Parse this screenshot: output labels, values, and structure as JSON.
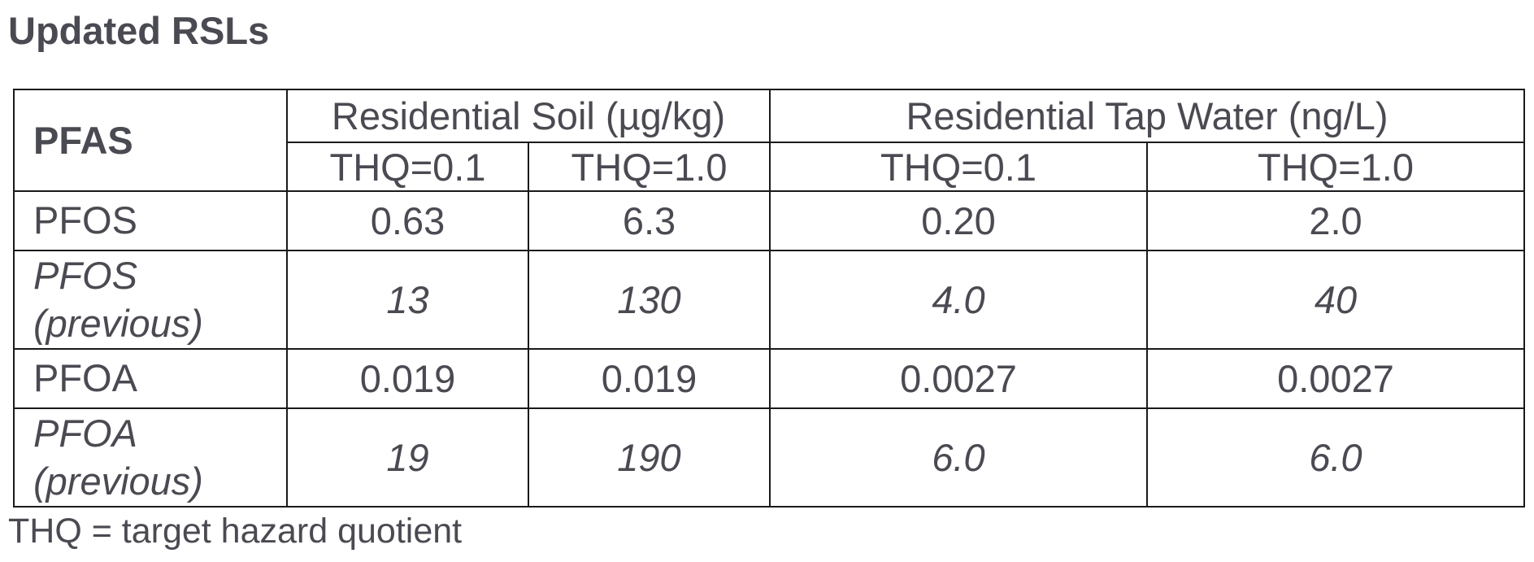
{
  "title": "Updated RSLs",
  "table": {
    "corner_header": "PFAS",
    "groups": [
      {
        "label": "Residential Soil (µg/kg)"
      },
      {
        "label": "Residential Tap Water (ng/L)"
      }
    ],
    "subheaders": [
      "THQ=0.1",
      "THQ=1.0",
      "THQ=0.1",
      "THQ=1.0"
    ],
    "rows": [
      {
        "label": "PFOS",
        "italic": false,
        "values": [
          "0.63",
          "6.3",
          "0.20",
          "2.0"
        ]
      },
      {
        "label_line1": "PFOS",
        "label_line2": "(previous)",
        "italic": true,
        "values": [
          "13",
          "130",
          "4.0",
          "40"
        ]
      },
      {
        "label": "PFOA",
        "italic": false,
        "values": [
          "0.019",
          "0.019",
          "0.0027",
          "0.0027"
        ]
      },
      {
        "label_line1": "PFOA",
        "label_line2": "(previous)",
        "italic": true,
        "values": [
          "19",
          "190",
          "6.0",
          "6.0"
        ]
      }
    ]
  },
  "footnote": "THQ = target hazard quotient"
}
